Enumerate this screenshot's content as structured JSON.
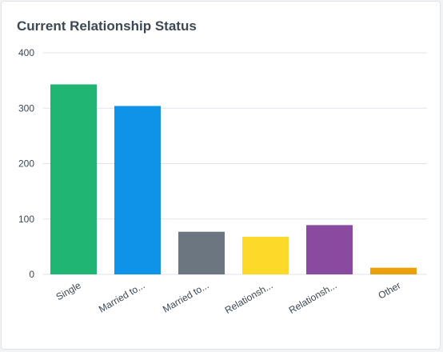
{
  "card": {
    "title": "Current Relationship Status"
  },
  "chart_data": {
    "type": "bar",
    "title": "Current Relationship Status",
    "xlabel": "",
    "ylabel": "",
    "categories": [
      "Single",
      "Married to...",
      "Married to...",
      "Relationsh...",
      "Relationsh...",
      "Other"
    ],
    "values": [
      343,
      304,
      77,
      68,
      89,
      12
    ],
    "colors": [
      "#21b573",
      "#0e93e8",
      "#6b7680",
      "#fdda2a",
      "#8a4aa0",
      "#eba20a"
    ],
    "ylim": [
      0,
      400
    ],
    "yticks": [
      "0",
      "100",
      "200",
      "300",
      "400"
    ],
    "grid": true,
    "gridColor": "#dfe3e8"
  }
}
